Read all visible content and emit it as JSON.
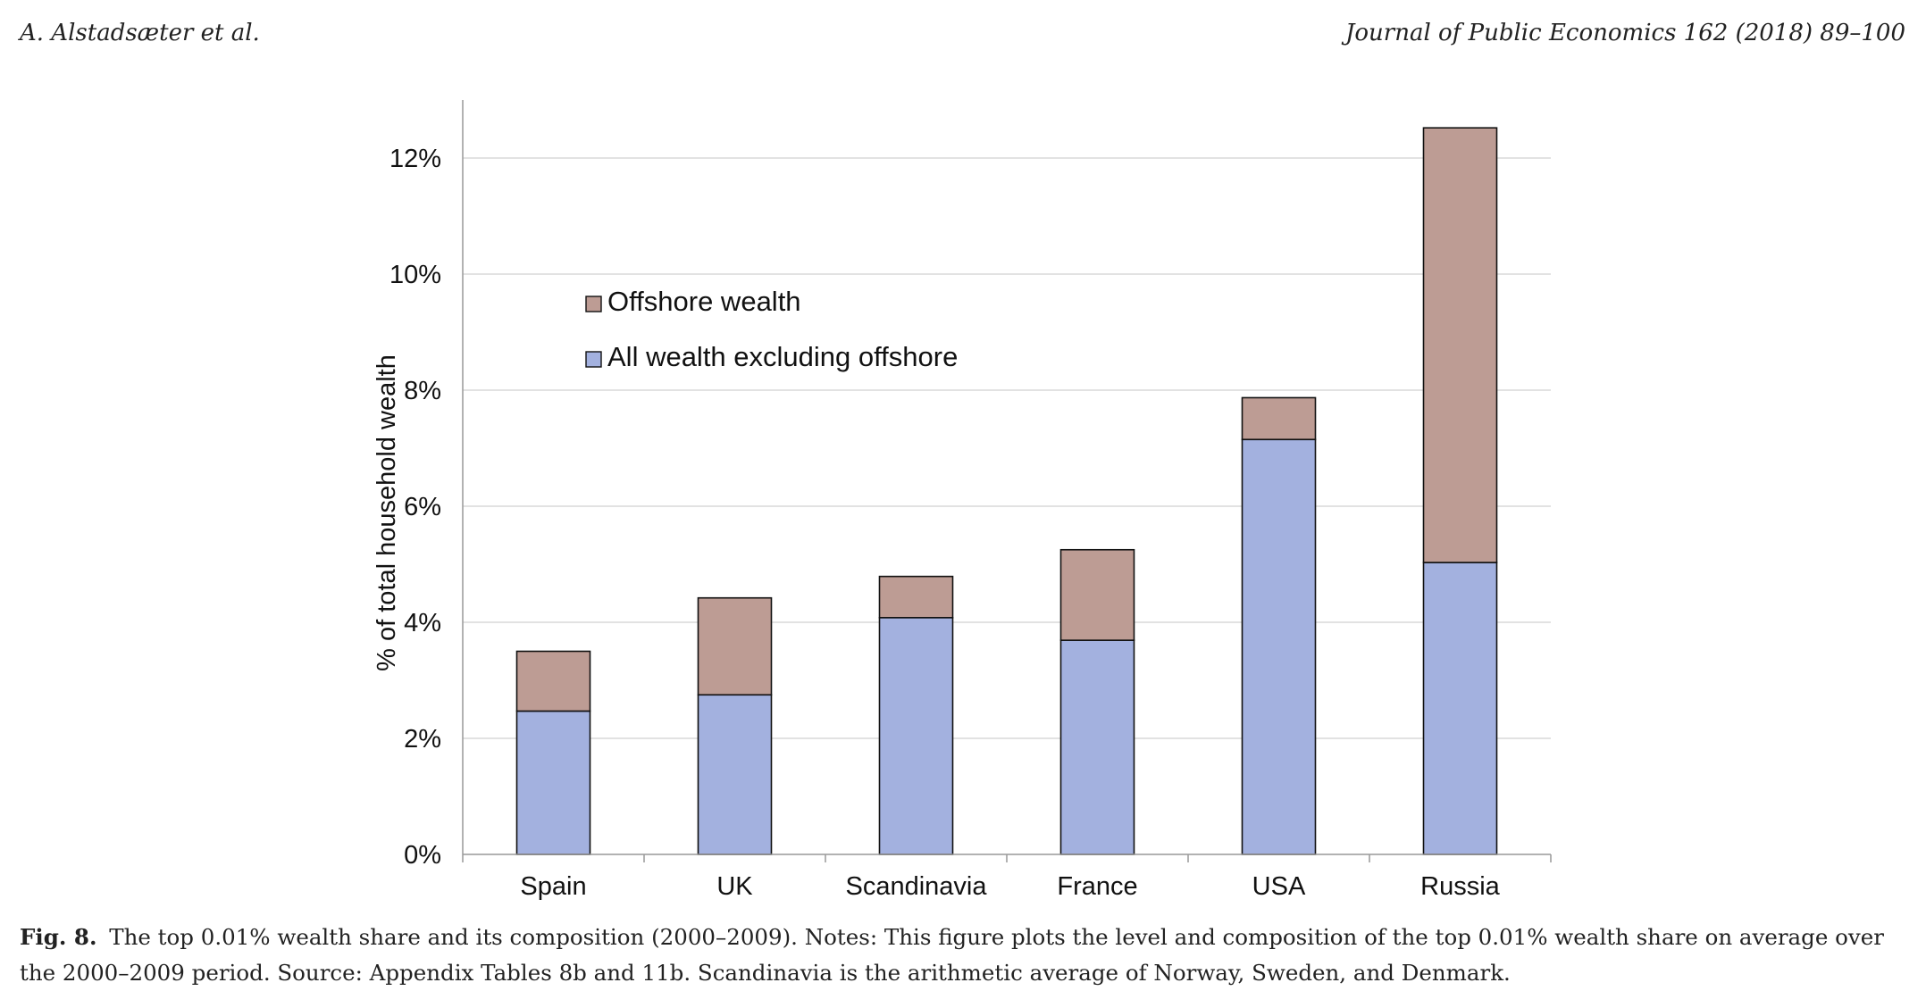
{
  "header": {
    "left": "A. Alstadsæter et al.",
    "right": "Journal of Public Economics 162 (2018) 89–100"
  },
  "caption": {
    "label": "Fig. 8.",
    "text": "The top 0.01% wealth share and its composition (2000–2009). Notes: This figure plots the level and composition of the top 0.01% wealth share on average over the 2000–2009 period. Source: Appendix Tables 8b and 11b. Scandinavia is the arithmetic average of Norway, Sweden, and Denmark."
  },
  "chart_data": {
    "type": "bar",
    "stacked": true,
    "ylabel": "% of total household wealth",
    "xlabel": "",
    "ylim": [
      0,
      13
    ],
    "yticks": [
      0,
      2,
      4,
      6,
      8,
      10,
      12
    ],
    "ytick_labels": [
      "0%",
      "2%",
      "4%",
      "6%",
      "8%",
      "10%",
      "12%"
    ],
    "grid": true,
    "legend_position": "upper-left",
    "categories": [
      "Spain",
      "UK",
      "Scandinavia",
      "France",
      "USA",
      "Russia"
    ],
    "series": [
      {
        "name": "All wealth excluding offshore",
        "values": [
          2.47,
          2.75,
          4.08,
          3.69,
          7.15,
          5.03
        ],
        "color": "#a3b1df"
      },
      {
        "name": "Offshore wealth",
        "values": [
          1.03,
          1.67,
          0.71,
          1.56,
          0.72,
          7.49
        ],
        "color": "#bd9c94"
      }
    ],
    "legend": [
      {
        "label": "Offshore wealth",
        "color": "#bd9c94"
      },
      {
        "label": "All wealth excluding offshore",
        "color": "#a3b1df"
      }
    ]
  }
}
